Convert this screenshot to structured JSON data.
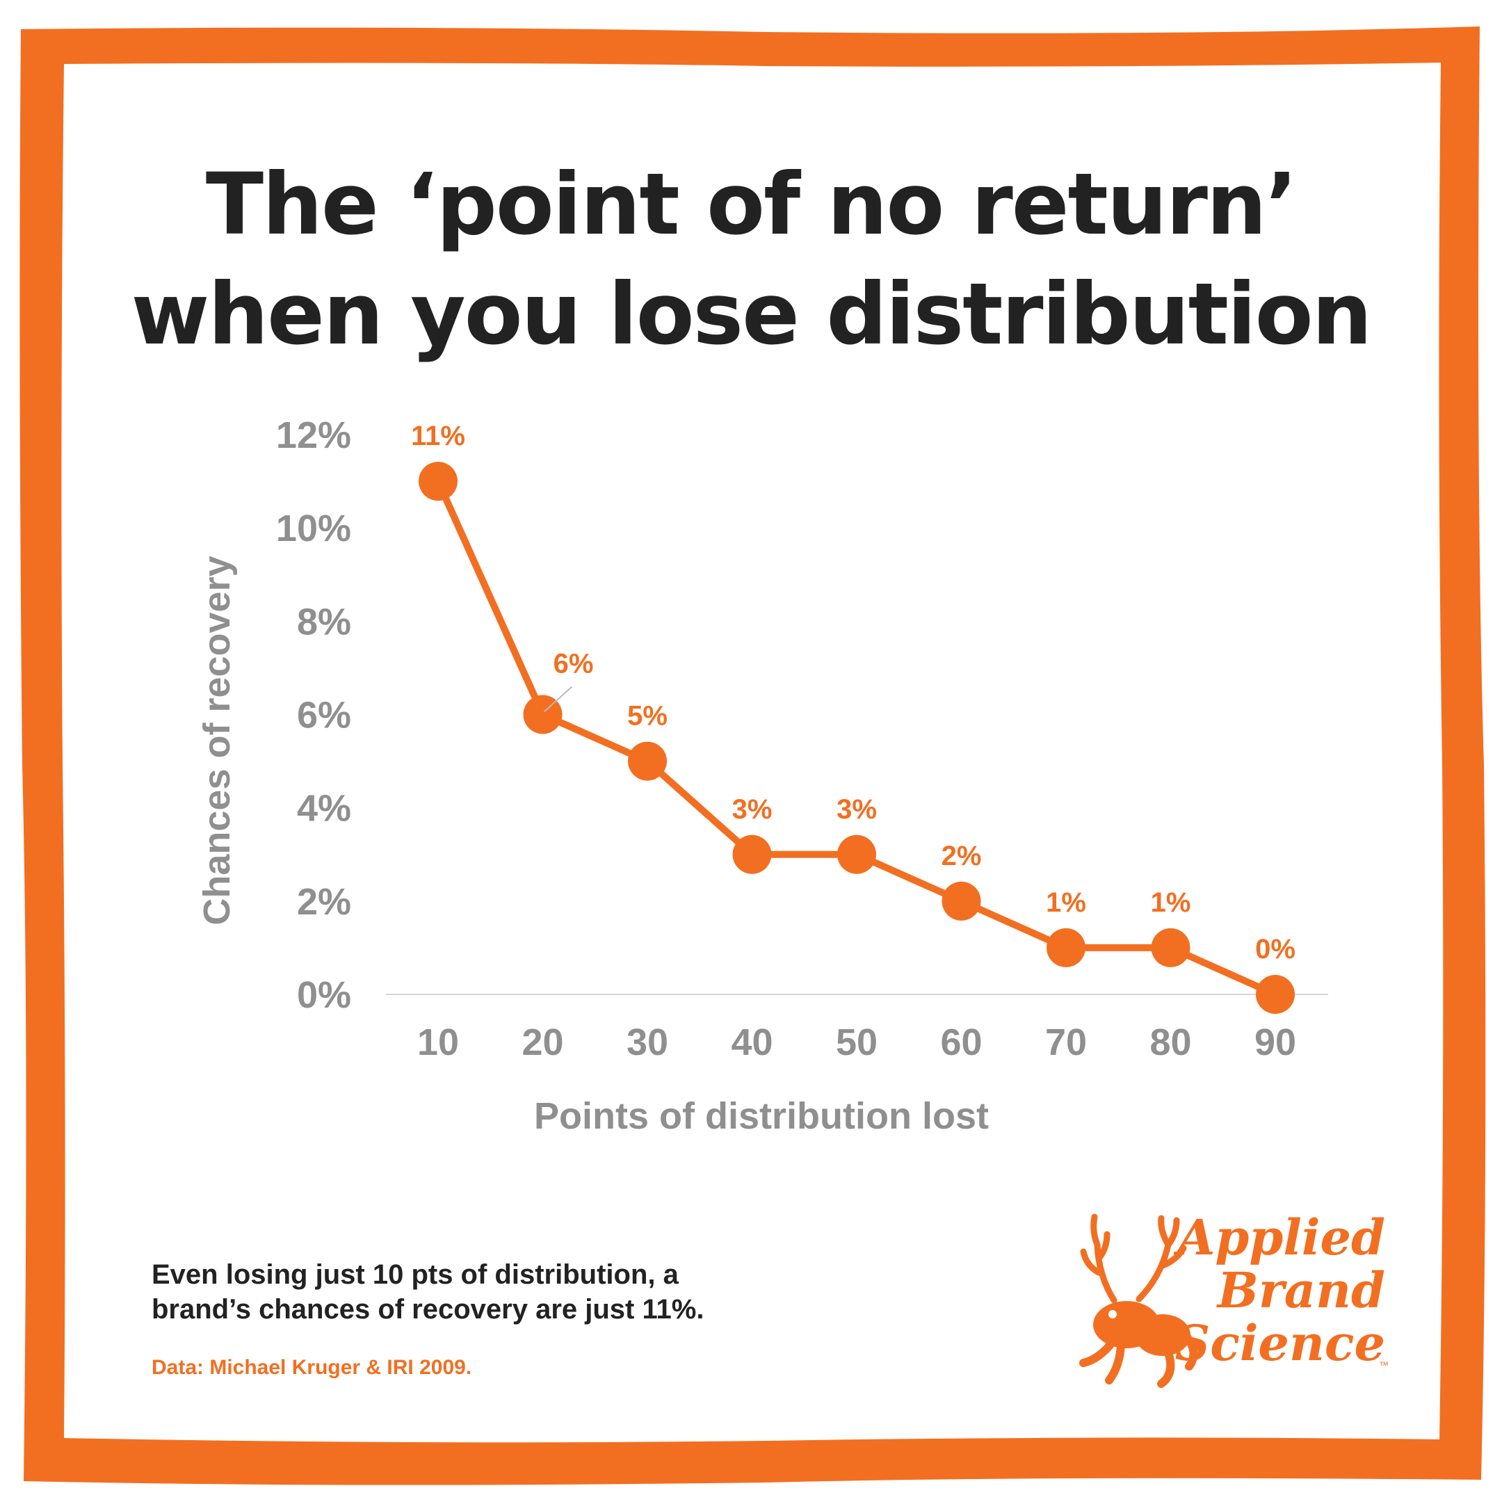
{
  "title_lines": [
    "The ‘point of no return’",
    "when you lose distribution"
  ],
  "chart_data": {
    "type": "line",
    "x": [
      10,
      20,
      30,
      40,
      50,
      60,
      70,
      80,
      90
    ],
    "values": [
      11,
      6,
      5,
      3,
      3,
      2,
      1,
      1,
      0
    ],
    "data_labels": [
      "11%",
      "6%",
      "5%",
      "3%",
      "3%",
      "2%",
      "1%",
      "1%",
      "0%"
    ],
    "x_tick_labels": [
      "10",
      "20",
      "30",
      "40",
      "50",
      "60",
      "70",
      "80",
      "90"
    ],
    "y_tick_values": [
      0,
      2,
      4,
      6,
      8,
      10,
      12
    ],
    "y_tick_labels": [
      "0%",
      "2%",
      "4%",
      "6%",
      "8%",
      "10%",
      "12%"
    ],
    "ylim": [
      0,
      12
    ],
    "xlabel": "Points of distribution lost",
    "ylabel": "Chances of recovery",
    "grid": false,
    "legend": "none",
    "line_color": "#f26f21"
  },
  "caption_lines": [
    "Even losing just 10 pts of distribution, a",
    "brand’s chances of recovery are just 11%."
  ],
  "source": "Data: Michael Kruger & IRI 2009.",
  "logo": {
    "lines": [
      "Applied",
      "Brand",
      "Science"
    ],
    "trademark": "™",
    "icon": "antlered-frog-icon"
  },
  "colors": {
    "accent": "#f26f21",
    "text_dark": "#222222",
    "text_gray": "#8f8f8f",
    "background": "#ffffff"
  }
}
